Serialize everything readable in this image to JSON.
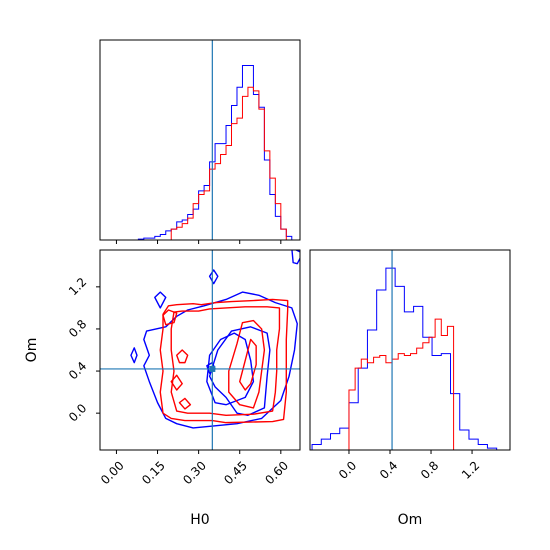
{
  "chart_data": {
    "type": "corner",
    "parameters": [
      "H0",
      "Om"
    ],
    "truth": {
      "H0": 0.35,
      "Om": 0.42
    },
    "colors": {
      "blue": "#0000ff",
      "red": "#ff0000",
      "truth": "#1f77b4"
    },
    "panels": [
      {
        "id": "H0-hist",
        "type": "histogram",
        "xlim": [
          -0.06,
          0.67
        ],
        "xticks": [
          0.0,
          0.15,
          0.3,
          0.45,
          0.6
        ],
        "ylim": [
          0,
          1.1
        ],
        "series": [
          {
            "color": "blue",
            "edges": [
              -0.06,
              -0.04,
              -0.02,
              0.0,
              0.02,
              0.04,
              0.06,
              0.08,
              0.1,
              0.12,
              0.14,
              0.16,
              0.18,
              0.2,
              0.22,
              0.24,
              0.26,
              0.28,
              0.3,
              0.32,
              0.34,
              0.36,
              0.38,
              0.4,
              0.42,
              0.44,
              0.46,
              0.48,
              0.5,
              0.52,
              0.54,
              0.56,
              0.58,
              0.6,
              0.62,
              0.64
            ],
            "counts": [
              0,
              0,
              0,
              0,
              0,
              0,
              0,
              0.005,
              0.01,
              0.01,
              0.02,
              0.03,
              0.05,
              0.06,
              0.1,
              0.11,
              0.14,
              0.17,
              0.27,
              0.3,
              0.43,
              0.53,
              0.53,
              0.63,
              0.74,
              0.84,
              0.96,
              0.96,
              0.8,
              0.73,
              0.44,
              0.25,
              0.13,
              0.06,
              0.02
            ]
          },
          {
            "color": "red",
            "edges": [
              -0.06,
              -0.04,
              -0.02,
              0.0,
              0.02,
              0.04,
              0.06,
              0.08,
              0.1,
              0.12,
              0.14,
              0.16,
              0.18,
              0.2,
              0.22,
              0.24,
              0.26,
              0.28,
              0.3,
              0.32,
              0.34,
              0.36,
              0.38,
              0.4,
              0.42,
              0.44,
              0.46,
              0.48,
              0.5,
              0.52,
              0.54,
              0.56,
              0.58,
              0.6,
              0.62,
              0.64
            ],
            "counts": [
              0,
              0,
              0,
              0,
              0,
              0,
              0,
              0,
              0,
              0,
              0,
              0,
              0,
              0.06,
              0.07,
              0.09,
              0.12,
              0.2,
              0.25,
              0.27,
              0.39,
              0.42,
              0.47,
              0.52,
              0.64,
              0.67,
              0.79,
              0.84,
              0.82,
              0.72,
              0.49,
              0.34,
              0.2,
              0.06,
              0
            ]
          }
        ]
      },
      {
        "id": "Om-hist",
        "type": "histogram",
        "xlim": [
          -0.38,
          1.57
        ],
        "xticks": [
          0.0,
          0.4,
          0.8,
          1.2
        ],
        "ylim": [
          0,
          1.1
        ],
        "series": [
          {
            "color": "blue",
            "edges": [
              -0.36,
              -0.27,
              -0.18,
              -0.09,
              0.0,
              0.09,
              0.18,
              0.27,
              0.36,
              0.45,
              0.54,
              0.63,
              0.72,
              0.81,
              0.9,
              0.99,
              1.08,
              1.17,
              1.26,
              1.35,
              1.44
            ],
            "counts": [
              0.03,
              0.06,
              0.09,
              0.12,
              0.26,
              0.45,
              0.66,
              0.88,
              1.0,
              0.9,
              0.76,
              0.79,
              0.62,
              0.52,
              0.53,
              0.31,
              0.11,
              0.06,
              0.03,
              0.01
            ]
          },
          {
            "color": "red",
            "edges": [
              0.0,
              0.06,
              0.12,
              0.18,
              0.24,
              0.3,
              0.36,
              0.42,
              0.48,
              0.54,
              0.6,
              0.66,
              0.72,
              0.78,
              0.84,
              0.9,
              0.96,
              1.02
            ],
            "counts": [
              0.33,
              0.45,
              0.5,
              0.48,
              0.51,
              0.52,
              0.48,
              0.5,
              0.53,
              0.52,
              0.53,
              0.56,
              0.59,
              0.62,
              0.72,
              0.63,
              0.68
            ]
          }
        ]
      },
      {
        "id": "H0-Om-2d",
        "type": "contour",
        "xlim": [
          -0.06,
          0.67
        ],
        "ylim": [
          -0.35,
          1.55
        ],
        "xticks": [
          0.0,
          0.15,
          0.3,
          0.45,
          0.6
        ],
        "yticks": [
          0.0,
          0.4,
          0.8,
          1.2
        ],
        "blue_contours": [
          [
            [
              0.22,
              0.92
            ],
            [
              0.18,
              0.82
            ],
            [
              0.11,
              0.78
            ],
            [
              0.1,
              0.7
            ],
            [
              0.12,
              0.55
            ],
            [
              0.1,
              0.45
            ],
            [
              0.12,
              0.3
            ],
            [
              0.15,
              0.1
            ],
            [
              0.18,
              -0.05
            ],
            [
              0.22,
              -0.1
            ],
            [
              0.28,
              -0.14
            ],
            [
              0.36,
              -0.12
            ],
            [
              0.44,
              -0.1
            ],
            [
              0.53,
              -0.05
            ],
            [
              0.6,
              0.12
            ],
            [
              0.63,
              0.35
            ],
            [
              0.65,
              0.6
            ],
            [
              0.66,
              0.85
            ],
            [
              0.64,
              1.0
            ],
            [
              0.58,
              1.05
            ],
            [
              0.52,
              1.12
            ],
            [
              0.46,
              1.15
            ],
            [
              0.4,
              1.08
            ],
            [
              0.32,
              1.02
            ],
            [
              0.26,
              0.98
            ]
          ],
          [
            [
              0.34,
              0.35
            ],
            [
              0.37,
              0.6
            ],
            [
              0.42,
              0.78
            ],
            [
              0.49,
              0.82
            ],
            [
              0.55,
              0.76
            ],
            [
              0.56,
              0.6
            ],
            [
              0.55,
              0.35
            ],
            [
              0.54,
              0.05
            ],
            [
              0.48,
              -0.02
            ],
            [
              0.44,
              0.0
            ],
            [
              0.4,
              0.15
            ],
            [
              0.36,
              0.25
            ]
          ],
          [
            [
              0.36,
              0.1
            ],
            [
              0.4,
              0.08
            ],
            [
              0.47,
              0.15
            ],
            [
              0.5,
              0.3
            ],
            [
              0.49,
              0.5
            ],
            [
              0.47,
              0.7
            ],
            [
              0.43,
              0.76
            ],
            [
              0.38,
              0.7
            ],
            [
              0.34,
              0.55
            ],
            [
              0.33,
              0.3
            ]
          ],
          [
            [
              0.33,
              0.45
            ],
            [
              0.35,
              0.48
            ],
            [
              0.36,
              0.42
            ],
            [
              0.34,
              0.38
            ]
          ],
          [
            [
              0.64,
              1.57
            ],
            [
              0.645,
              1.43
            ],
            [
              0.66,
              1.42
            ],
            [
              0.68,
              1.52
            ]
          ],
          [
            [
              0.053,
              0.55
            ],
            [
              0.065,
              0.48
            ],
            [
              0.075,
              0.55
            ],
            [
              0.065,
              0.62
            ]
          ],
          [
            [
              0.34,
              1.3
            ],
            [
              0.355,
              1.23
            ],
            [
              0.37,
              1.3
            ],
            [
              0.355,
              1.36
            ]
          ],
          [
            [
              0.14,
              1.1
            ],
            [
              0.16,
              1.0
            ],
            [
              0.18,
              1.1
            ],
            [
              0.16,
              1.15
            ]
          ]
        ],
        "red_contours": [
          [
            [
              0.19,
              1.02
            ],
            [
              0.22,
              1.03
            ],
            [
              0.28,
              1.04
            ],
            [
              0.31,
              1.03
            ],
            [
              0.36,
              1.05
            ],
            [
              0.42,
              1.06
            ],
            [
              0.5,
              1.07
            ],
            [
              0.57,
              1.08
            ],
            [
              0.625,
              1.07
            ],
            [
              0.625,
              0.98
            ],
            [
              0.62,
              0.7
            ],
            [
              0.62,
              0.4
            ],
            [
              0.62,
              0.2
            ],
            [
              0.61,
              -0.06
            ],
            [
              0.57,
              -0.08
            ],
            [
              0.4,
              -0.09
            ],
            [
              0.35,
              -0.07
            ],
            [
              0.25,
              -0.07
            ],
            [
              0.2,
              -0.05
            ],
            [
              0.17,
              0.0
            ],
            [
              0.16,
              0.2
            ],
            [
              0.17,
              0.4
            ],
            [
              0.16,
              0.6
            ],
            [
              0.17,
              0.8
            ],
            [
              0.17,
              0.94
            ]
          ],
          [
            [
              0.21,
              0.96
            ],
            [
              0.24,
              0.97
            ],
            [
              0.3,
              0.97
            ],
            [
              0.34,
              0.99
            ],
            [
              0.4,
              1.0
            ],
            [
              0.47,
              1.01
            ],
            [
              0.55,
              1.01
            ],
            [
              0.595,
              1.0
            ],
            [
              0.595,
              0.8
            ],
            [
              0.585,
              0.6
            ],
            [
              0.585,
              0.4
            ],
            [
              0.58,
              0.2
            ],
            [
              0.57,
              0.02
            ],
            [
              0.5,
              -0.01
            ],
            [
              0.4,
              -0.02
            ],
            [
              0.34,
              0.0
            ],
            [
              0.26,
              0.0
            ],
            [
              0.22,
              0.02
            ],
            [
              0.2,
              0.2
            ],
            [
              0.21,
              0.4
            ],
            [
              0.2,
              0.6
            ],
            [
              0.2,
              0.8
            ]
          ],
          [
            [
              0.41,
              0.4
            ],
            [
              0.44,
              0.66
            ],
            [
              0.46,
              0.86
            ],
            [
              0.5,
              0.88
            ],
            [
              0.53,
              0.8
            ],
            [
              0.54,
              0.6
            ],
            [
              0.53,
              0.4
            ],
            [
              0.52,
              0.2
            ],
            [
              0.5,
              0.05
            ],
            [
              0.45,
              0.08
            ],
            [
              0.41,
              0.2
            ]
          ],
          [
            [
              0.45,
              0.3
            ],
            [
              0.47,
              0.5
            ],
            [
              0.49,
              0.7
            ],
            [
              0.51,
              0.64
            ],
            [
              0.51,
              0.46
            ],
            [
              0.49,
              0.28
            ],
            [
              0.47,
              0.22
            ]
          ],
          [
            [
              0.17,
              0.93
            ],
            [
              0.19,
              0.98
            ],
            [
              0.22,
              0.95
            ],
            [
              0.21,
              0.86
            ],
            [
              0.18,
              0.84
            ]
          ],
          [
            [
              0.22,
              0.55
            ],
            [
              0.24,
              0.6
            ],
            [
              0.26,
              0.55
            ],
            [
              0.25,
              0.48
            ],
            [
              0.23,
              0.48
            ]
          ],
          [
            [
              0.2,
              0.3
            ],
            [
              0.22,
              0.36
            ],
            [
              0.24,
              0.28
            ],
            [
              0.22,
              0.22
            ]
          ],
          [
            [
              0.23,
              0.1
            ],
            [
              0.25,
              0.14
            ],
            [
              0.27,
              0.08
            ],
            [
              0.25,
              0.04
            ]
          ]
        ]
      }
    ]
  }
}
